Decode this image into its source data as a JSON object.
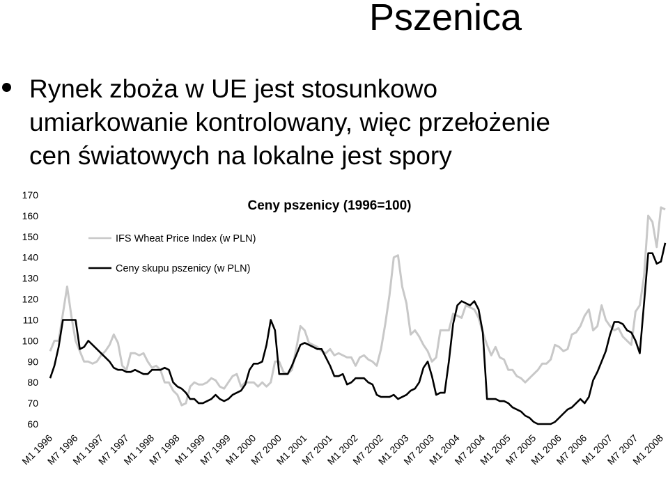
{
  "slide": {
    "title": "Pszenica",
    "bullet_lines": [
      "Rynek zboża w UE jest stosunkowo",
      "umiarkowanie kontrolowany, więc przełożenie",
      "cen światowych na lokalne jest spory"
    ]
  },
  "chart_data": {
    "type": "line",
    "title": "Ceny pszenicy (1996=100)",
    "xlabel": "",
    "ylabel": "",
    "ylim": [
      60,
      170
    ],
    "yticks": [
      60,
      70,
      80,
      90,
      100,
      110,
      120,
      130,
      140,
      150,
      160,
      170
    ],
    "grid": false,
    "legend_position": "top-left",
    "x_tick_labels": [
      "M1 1996",
      "M7 1996",
      "M1 1997",
      "M7 1997",
      "M1 1998",
      "M7 1998",
      "M1 1999",
      "M7 1999",
      "M1 2000",
      "M7 2000",
      "M1 2001",
      "M7 2001",
      "M1 2002",
      "M7 2002",
      "M1 2003",
      "M7 2003",
      "M1 2004",
      "M7 2004",
      "M1 2005",
      "M7 2005",
      "M1 2006",
      "M7 2006",
      "M1 2007",
      "M7 2007",
      "M1 2008"
    ],
    "series": [
      {
        "name": "IFS Wheat Price Index (w PLN)",
        "color": "#c8c8c8",
        "values": [
          95,
          100,
          100,
          113,
          126,
          112,
          100,
          95,
          90,
          90,
          89,
          90,
          93,
          95,
          98,
          103,
          99,
          88,
          86,
          94,
          94,
          93,
          94,
          90,
          87,
          88,
          86,
          80,
          80,
          76,
          74,
          69,
          70,
          78,
          80,
          79,
          79,
          80,
          82,
          81,
          78,
          77,
          80,
          83,
          84,
          78,
          80,
          80,
          80,
          78,
          80,
          78,
          80,
          90,
          90,
          85,
          84,
          86,
          96,
          107,
          105,
          99,
          98,
          97,
          95,
          94,
          96,
          93,
          94,
          93,
          92,
          92,
          88,
          92,
          93,
          91,
          90,
          88,
          96,
          108,
          122,
          140,
          141,
          126,
          118,
          103,
          105,
          102,
          98,
          95,
          90,
          92,
          105,
          105,
          105,
          113,
          112,
          111,
          117,
          116,
          115,
          111,
          104,
          98,
          93,
          97,
          92,
          91,
          86,
          86,
          83,
          82,
          80,
          82,
          84,
          86,
          89,
          89,
          91,
          98,
          97,
          95,
          96,
          103,
          104,
          107,
          112,
          115,
          105,
          107,
          117,
          110,
          107,
          105,
          106,
          102,
          100,
          98,
          114,
          117,
          131,
          160,
          157,
          145,
          164,
          163
        ]
      },
      {
        "name": "Ceny skupu pszenicy (w PLN)",
        "color": "#000000",
        "values": [
          82,
          88,
          97,
          110,
          110,
          110,
          110,
          96,
          97,
          100,
          98,
          96,
          94,
          92,
          90,
          87,
          86,
          86,
          85,
          85,
          86,
          85,
          84,
          84,
          86,
          86,
          86,
          87,
          86,
          80,
          78,
          77,
          75,
          72,
          72,
          70,
          70,
          71,
          72,
          74,
          72,
          71,
          72,
          74,
          75,
          76,
          79,
          86,
          89,
          89,
          90,
          98,
          110,
          105,
          84,
          84,
          84,
          88,
          93,
          98,
          99,
          98,
          97,
          96,
          96,
          92,
          88,
          83,
          83,
          84,
          79,
          80,
          82,
          82,
          82,
          80,
          79,
          74,
          73,
          73,
          73,
          74,
          72,
          73,
          74,
          76,
          77,
          80,
          87,
          90,
          83,
          74,
          75,
          75,
          90,
          108,
          117,
          119,
          118,
          117,
          119,
          115,
          104,
          72,
          72,
          72,
          71,
          71,
          70,
          68,
          67,
          66,
          64,
          63,
          61,
          60,
          60,
          60,
          60,
          61,
          63,
          65,
          67,
          68,
          70,
          72,
          70,
          73,
          81,
          85,
          90,
          95,
          103,
          109,
          109,
          108,
          105,
          104,
          100,
          94,
          118,
          142,
          142,
          137,
          138,
          147
        ]
      }
    ]
  }
}
